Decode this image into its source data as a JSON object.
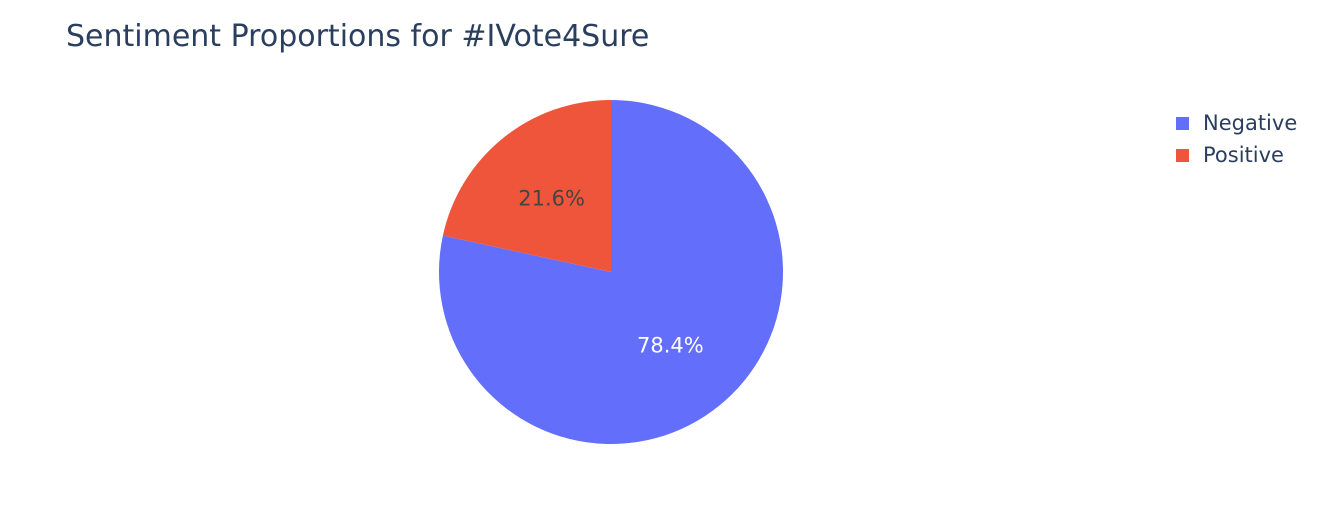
{
  "chart_data": {
    "type": "pie",
    "title": "Sentiment Proportions for #IVote4Sure",
    "slices": [
      {
        "label": "Negative",
        "value": 78.4,
        "text": "78.4%",
        "color": "#636efa",
        "text_color": "#ffffff"
      },
      {
        "label": "Positive",
        "value": 21.6,
        "text": "21.6%",
        "color": "#ef553b",
        "text_color": "#444444"
      }
    ],
    "legend": {
      "placement": "top-right",
      "entries": [
        "Negative",
        "Positive"
      ]
    }
  }
}
